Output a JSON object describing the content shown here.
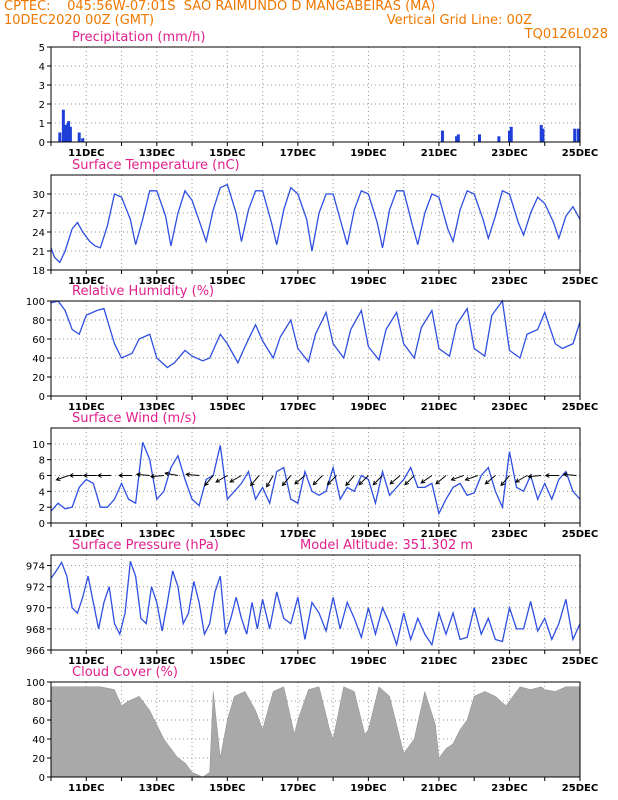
{
  "header": {
    "source": "CPTEC:",
    "coords": "045:56W-07:01S",
    "station": "SAO RAIMUNDO D MANGABEIRAS (MA)",
    "init_time": "10DEC2020 00Z (GMT)",
    "grid_note": "Vertical Grid Line: 00Z",
    "model": "TQ0126L028"
  },
  "colors": {
    "header": "#f07800",
    "title": "#e0208c",
    "line": "#2f4fe0",
    "bars": "#1f3fd8",
    "cloud": "#a9a9a9"
  },
  "chart_data": [
    {
      "type": "bar",
      "title": "Precipitation (mm/h)",
      "x_start_day": 10,
      "x_end_day": 25,
      "x_ticks": [
        "11DEC",
        "13DEC",
        "15DEC",
        "17DEC",
        "19DEC",
        "21DEC",
        "23DEC",
        "25DEC"
      ],
      "ylim": [
        0,
        5
      ],
      "y_ticks": [
        0,
        1,
        2,
        3,
        4,
        5
      ],
      "x": [
        10.25,
        10.35,
        10.42,
        10.48,
        10.5,
        10.55,
        10.8,
        10.9,
        21.1,
        21.5,
        21.55,
        22.15,
        22.7,
        23.0,
        23.05,
        23.9,
        23.95,
        24.85,
        24.95
      ],
      "values": [
        0.5,
        1.7,
        0.9,
        1.0,
        1.1,
        0.8,
        0.5,
        0.2,
        0.6,
        0.3,
        0.4,
        0.4,
        0.3,
        0.6,
        0.8,
        0.9,
        0.7,
        0.7,
        0.7
      ]
    },
    {
      "type": "line",
      "title": "Surface Temperature (nC)",
      "x_start_day": 10,
      "x_end_day": 25,
      "x_ticks": [
        "11DEC",
        "13DEC",
        "15DEC",
        "17DEC",
        "19DEC",
        "21DEC",
        "23DEC",
        "25DEC"
      ],
      "ylim": [
        18,
        33
      ],
      "y_ticks": [
        18,
        21,
        24,
        27,
        30
      ],
      "x": [
        10.0,
        10.1,
        10.25,
        10.4,
        10.6,
        10.75,
        10.9,
        11.1,
        11.25,
        11.4,
        11.6,
        11.8,
        12.0,
        12.25,
        12.4,
        12.6,
        12.8,
        13.0,
        13.25,
        13.4,
        13.6,
        13.8,
        14.0,
        14.25,
        14.4,
        14.6,
        14.8,
        15.0,
        15.25,
        15.4,
        15.6,
        15.8,
        16.0,
        16.25,
        16.4,
        16.6,
        16.8,
        17.0,
        17.25,
        17.4,
        17.6,
        17.8,
        18.0,
        18.25,
        18.4,
        18.6,
        18.8,
        19.0,
        19.25,
        19.4,
        19.6,
        19.8,
        20.0,
        20.25,
        20.4,
        20.6,
        20.8,
        21.0,
        21.25,
        21.4,
        21.6,
        21.8,
        22.0,
        22.25,
        22.4,
        22.6,
        22.8,
        23.0,
        23.25,
        23.4,
        23.6,
        23.8,
        24.0,
        24.25,
        24.4,
        24.6,
        24.8,
        25.0
      ],
      "values": [
        21.5,
        20.0,
        19.2,
        21.0,
        24.5,
        25.5,
        24.0,
        22.5,
        21.8,
        21.5,
        25.0,
        30.0,
        29.5,
        26.0,
        22.0,
        26.0,
        30.5,
        30.5,
        26.5,
        21.8,
        27.0,
        30.5,
        29.0,
        25.0,
        22.5,
        27.5,
        31.0,
        31.5,
        27.0,
        22.5,
        27.5,
        30.5,
        30.5,
        25.5,
        22.0,
        27.5,
        31.0,
        30.0,
        26.0,
        21.0,
        27.0,
        30.0,
        30.0,
        25.0,
        22.0,
        27.5,
        30.5,
        30.0,
        25.5,
        21.5,
        27.5,
        30.5,
        30.5,
        25.0,
        22.0,
        27.0,
        30.0,
        29.5,
        24.5,
        22.5,
        27.5,
        30.5,
        30.0,
        26.0,
        23.0,
        26.5,
        30.5,
        30.0,
        25.5,
        23.5,
        27.0,
        29.5,
        28.5,
        25.5,
        23.0,
        26.5,
        28.0,
        26.0
      ]
    },
    {
      "type": "line",
      "title": "Relative Humidity (%)",
      "x_start_day": 10,
      "x_end_day": 25,
      "x_ticks": [
        "11DEC",
        "13DEC",
        "15DEC",
        "17DEC",
        "19DEC",
        "21DEC",
        "23DEC",
        "25DEC"
      ],
      "ylim": [
        0,
        100
      ],
      "y_ticks": [
        0,
        20,
        40,
        60,
        80,
        100
      ],
      "x": [
        10.0,
        10.2,
        10.4,
        10.6,
        10.8,
        11.0,
        11.3,
        11.5,
        11.8,
        12.0,
        12.3,
        12.5,
        12.8,
        13.0,
        13.3,
        13.5,
        13.8,
        14.0,
        14.3,
        14.5,
        14.8,
        15.0,
        15.3,
        15.5,
        15.8,
        16.0,
        16.3,
        16.5,
        16.8,
        17.0,
        17.3,
        17.5,
        17.8,
        18.0,
        18.3,
        18.5,
        18.8,
        19.0,
        19.3,
        19.5,
        19.8,
        20.0,
        20.3,
        20.5,
        20.8,
        21.0,
        21.3,
        21.5,
        21.8,
        22.0,
        22.3,
        22.5,
        22.8,
        23.0,
        23.3,
        23.5,
        23.8,
        24.0,
        24.3,
        24.5,
        24.8,
        25.0
      ],
      "values": [
        98,
        100,
        90,
        70,
        65,
        85,
        90,
        92,
        55,
        40,
        45,
        60,
        65,
        40,
        30,
        35,
        48,
        42,
        37,
        40,
        65,
        55,
        35,
        52,
        75,
        58,
        40,
        62,
        80,
        50,
        36,
        65,
        88,
        55,
        40,
        70,
        90,
        52,
        38,
        70,
        88,
        55,
        40,
        72,
        90,
        50,
        42,
        75,
        92,
        50,
        42,
        85,
        100,
        48,
        40,
        65,
        70,
        88,
        55,
        50,
        55,
        78
      ]
    },
    {
      "type": "line",
      "title": "Surface Wind (m/s)",
      "x_start_day": 10,
      "x_end_day": 25,
      "x_ticks": [
        "11DEC",
        "13DEC",
        "15DEC",
        "17DEC",
        "19DEC",
        "21DEC",
        "23DEC",
        "25DEC"
      ],
      "ylim": [
        0,
        12
      ],
      "y_ticks": [
        0,
        2,
        4,
        6,
        8,
        10
      ],
      "x": [
        10.0,
        10.2,
        10.4,
        10.6,
        10.8,
        11.0,
        11.2,
        11.4,
        11.6,
        11.8,
        12.0,
        12.2,
        12.4,
        12.6,
        12.8,
        13.0,
        13.2,
        13.4,
        13.6,
        13.8,
        14.0,
        14.2,
        14.4,
        14.6,
        14.8,
        15.0,
        15.2,
        15.4,
        15.6,
        15.8,
        16.0,
        16.2,
        16.4,
        16.6,
        16.8,
        17.0,
        17.2,
        17.4,
        17.6,
        17.8,
        18.0,
        18.2,
        18.4,
        18.6,
        18.8,
        19.0,
        19.2,
        19.4,
        19.6,
        19.8,
        20.0,
        20.2,
        20.4,
        20.6,
        20.8,
        21.0,
        21.2,
        21.4,
        21.6,
        21.8,
        22.0,
        22.2,
        22.4,
        22.6,
        22.8,
        23.0,
        23.2,
        23.4,
        23.6,
        23.8,
        24.0,
        24.2,
        24.4,
        24.6,
        24.8,
        25.0
      ],
      "values": [
        1.5,
        2.5,
        1.8,
        2.0,
        4.5,
        5.5,
        5.0,
        2.0,
        2.0,
        3.0,
        5.0,
        3.0,
        2.5,
        10.2,
        8.0,
        3.0,
        4.0,
        7.0,
        8.5,
        5.5,
        3.0,
        2.2,
        5.5,
        6.0,
        9.8,
        3.0,
        4.0,
        5.0,
        6.5,
        3.0,
        4.5,
        2.5,
        6.5,
        7.0,
        3.0,
        2.5,
        6.5,
        4.0,
        3.5,
        4.0,
        7.0,
        3.0,
        4.5,
        4.0,
        6.0,
        5.5,
        2.5,
        6.5,
        3.5,
        4.5,
        5.5,
        7.0,
        4.5,
        4.5,
        5.0,
        1.2,
        3.0,
        4.5,
        5.0,
        3.5,
        3.8,
        6.0,
        7.0,
        4.0,
        2.0,
        9.0,
        4.5,
        4.0,
        6.0,
        3.0,
        5.0,
        3.0,
        5.5,
        6.5,
        4.0,
        3.0
      ],
      "arrow_x": [
        10.5,
        10.9,
        11.3,
        11.7,
        12.3,
        12.8,
        13.2,
        13.6,
        14.2,
        14.6,
        15.0,
        15.4,
        15.9,
        16.3,
        16.8,
        17.2,
        17.7,
        18.1,
        18.6,
        19.0,
        19.4,
        19.9,
        20.3,
        20.8,
        21.2,
        21.7,
        22.1,
        22.6,
        23.0,
        23.5,
        23.9,
        24.4,
        24.9
      ],
      "arrow_dir_deg": [
        200,
        180,
        180,
        180,
        180,
        175,
        185,
        170,
        175,
        230,
        210,
        210,
        230,
        240,
        230,
        220,
        225,
        225,
        230,
        225,
        225,
        220,
        225,
        215,
        220,
        200,
        200,
        220,
        230,
        210,
        185,
        180,
        175
      ]
    },
    {
      "type": "line",
      "title": "Surface Pressure (hPa)",
      "annotation": "Model Altitude: 351.302 m",
      "x_start_day": 10,
      "x_end_day": 25,
      "x_ticks": [
        "11DEC",
        "13DEC",
        "15DEC",
        "17DEC",
        "19DEC",
        "21DEC",
        "23DEC",
        "25DEC"
      ],
      "ylim": [
        966,
        975
      ],
      "y_ticks": [
        966,
        968,
        970,
        972,
        974
      ],
      "x": [
        10.0,
        10.15,
        10.3,
        10.45,
        10.6,
        10.75,
        10.9,
        11.05,
        11.2,
        11.35,
        11.5,
        11.65,
        11.8,
        11.95,
        12.1,
        12.25,
        12.4,
        12.55,
        12.7,
        12.85,
        13.0,
        13.15,
        13.3,
        13.45,
        13.6,
        13.75,
        13.9,
        14.05,
        14.2,
        14.35,
        14.5,
        14.65,
        14.8,
        14.95,
        15.1,
        15.25,
        15.4,
        15.55,
        15.7,
        15.85,
        16.0,
        16.2,
        16.4,
        16.6,
        16.8,
        17.0,
        17.2,
        17.4,
        17.6,
        17.8,
        18.0,
        18.2,
        18.4,
        18.6,
        18.8,
        19.0,
        19.2,
        19.4,
        19.6,
        19.8,
        20.0,
        20.2,
        20.4,
        20.6,
        20.8,
        21.0,
        21.2,
        21.4,
        21.6,
        21.8,
        22.0,
        22.2,
        22.4,
        22.6,
        22.8,
        23.0,
        23.2,
        23.4,
        23.6,
        23.8,
        24.0,
        24.2,
        24.4,
        24.6,
        24.8,
        25.0
      ],
      "values": [
        972.8,
        973.5,
        974.3,
        973.0,
        970.0,
        969.5,
        971.0,
        973.0,
        970.5,
        968.0,
        970.5,
        972.0,
        968.5,
        967.5,
        969.5,
        974.4,
        973.0,
        969.0,
        968.5,
        972.0,
        970.5,
        967.8,
        970.5,
        973.5,
        972.0,
        968.5,
        969.5,
        972.5,
        970.5,
        967.5,
        968.5,
        971.5,
        973.0,
        967.5,
        969.0,
        971.0,
        969.0,
        967.5,
        970.5,
        968.0,
        970.8,
        968.0,
        971.5,
        969.0,
        968.5,
        971.0,
        967.0,
        970.5,
        969.5,
        967.8,
        971.0,
        968.0,
        970.5,
        969.0,
        967.2,
        970.0,
        967.5,
        970.0,
        968.5,
        966.5,
        969.5,
        967.0,
        969.0,
        967.5,
        966.5,
        969.5,
        967.5,
        969.5,
        967.0,
        967.2,
        970.0,
        967.5,
        969.0,
        967.0,
        966.8,
        970.0,
        968.0,
        968.0,
        970.6,
        967.8,
        969.0,
        967.0,
        968.5,
        970.8,
        967.0,
        968.5
      ]
    },
    {
      "type": "area",
      "title": "Cloud Cover (%)",
      "x_start_day": 10,
      "x_end_day": 25,
      "x_ticks": [
        "11DEC",
        "13DEC",
        "15DEC",
        "17DEC",
        "19DEC",
        "21DEC",
        "23DEC",
        "25DEC"
      ],
      "ylim": [
        0,
        100
      ],
      "y_ticks": [
        0,
        20,
        40,
        60,
        80,
        100
      ],
      "x": [
        10.0,
        10.3,
        10.6,
        11.0,
        11.4,
        11.8,
        12.0,
        12.2,
        12.5,
        12.8,
        13.0,
        13.2,
        13.4,
        13.6,
        13.8,
        14.0,
        14.3,
        14.5,
        14.6,
        14.8,
        15.0,
        15.2,
        15.5,
        15.8,
        16.0,
        16.3,
        16.6,
        16.9,
        17.0,
        17.3,
        17.6,
        17.9,
        18.0,
        18.3,
        18.6,
        18.9,
        19.0,
        19.3,
        19.6,
        19.9,
        20.0,
        20.3,
        20.6,
        20.9,
        21.0,
        21.2,
        21.4,
        21.6,
        21.8,
        22.0,
        22.3,
        22.6,
        22.9,
        23.0,
        23.3,
        23.6,
        23.9,
        24.0,
        24.3,
        24.6,
        25.0
      ],
      "values": [
        95,
        95,
        95,
        95,
        95,
        92,
        75,
        80,
        85,
        70,
        55,
        40,
        30,
        20,
        15,
        5,
        0,
        5,
        90,
        20,
        60,
        85,
        90,
        70,
        50,
        90,
        95,
        45,
        60,
        92,
        95,
        50,
        40,
        95,
        90,
        45,
        50,
        95,
        85,
        40,
        25,
        40,
        90,
        55,
        20,
        30,
        35,
        50,
        60,
        85,
        90,
        85,
        75,
        80,
        95,
        92,
        95,
        92,
        90,
        95,
        95
      ]
    }
  ]
}
